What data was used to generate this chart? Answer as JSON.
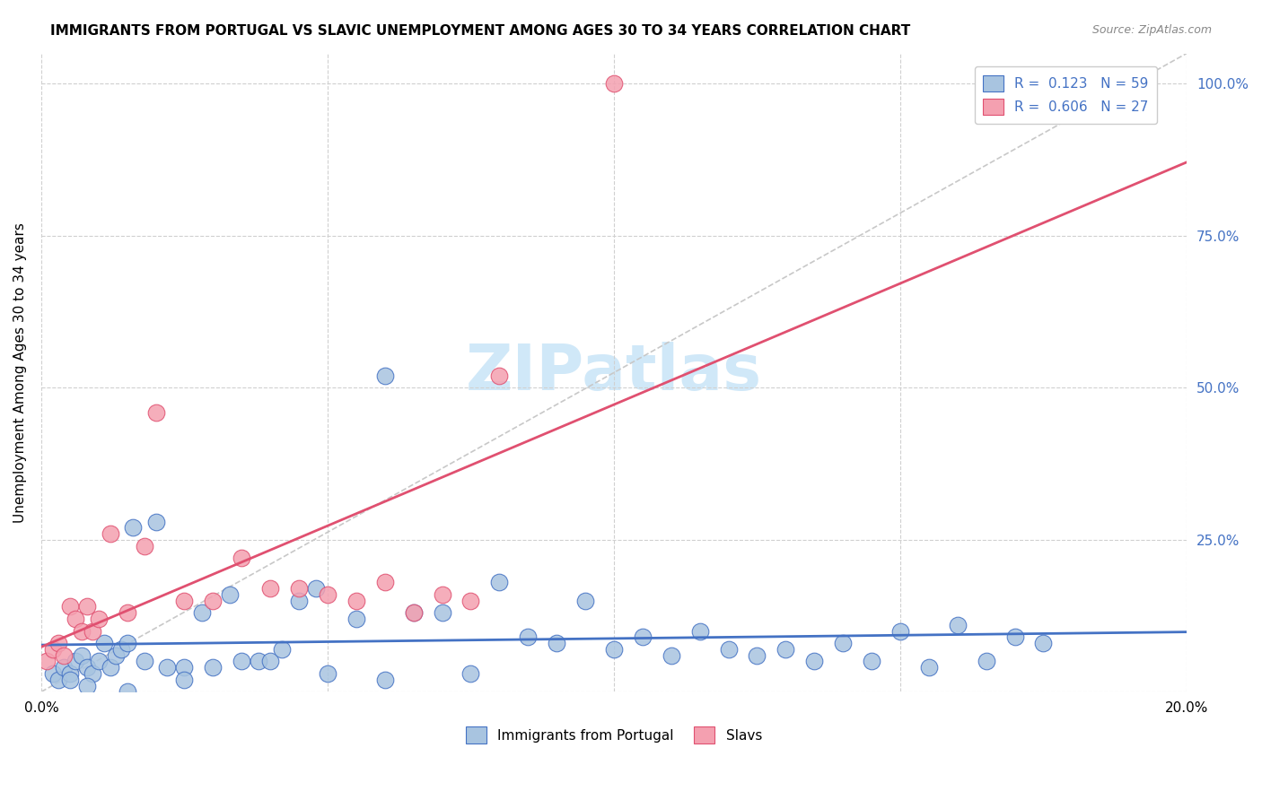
{
  "title": "IMMIGRANTS FROM PORTUGAL VS SLAVIC UNEMPLOYMENT AMONG AGES 30 TO 34 YEARS CORRELATION CHART",
  "source": "Source: ZipAtlas.com",
  "ylabel": "Unemployment Among Ages 30 to 34 years",
  "xlim": [
    0.0,
    0.2
  ],
  "ylim": [
    0.0,
    1.05
  ],
  "x_ticks": [
    0.0,
    0.05,
    0.1,
    0.15,
    0.2
  ],
  "x_tick_labels": [
    "0.0%",
    "",
    "",
    "",
    "20.0%"
  ],
  "y_ticks": [
    0.0,
    0.25,
    0.5,
    0.75,
    1.0
  ],
  "y_tick_labels_right": [
    "",
    "25.0%",
    "50.0%",
    "75.0%",
    "100.0%"
  ],
  "legend1_label": "Immigrants from Portugal",
  "legend2_label": "Slavs",
  "R1": "0.123",
  "N1": "59",
  "R2": "0.606",
  "N2": "27",
  "color_blue": "#a8c4e0",
  "color_pink": "#f4a0b0",
  "line_blue": "#4472C4",
  "line_pink": "#E05070",
  "watermark_color": "#d0e8f8",
  "blue_scatter_x": [
    0.002,
    0.003,
    0.004,
    0.005,
    0.006,
    0.007,
    0.008,
    0.009,
    0.01,
    0.011,
    0.012,
    0.013,
    0.014,
    0.015,
    0.016,
    0.018,
    0.02,
    0.022,
    0.025,
    0.028,
    0.03,
    0.033,
    0.035,
    0.038,
    0.04,
    0.042,
    0.045,
    0.048,
    0.05,
    0.055,
    0.06,
    0.065,
    0.07,
    0.075,
    0.08,
    0.085,
    0.09,
    0.095,
    0.1,
    0.105,
    0.11,
    0.115,
    0.12,
    0.125,
    0.13,
    0.135,
    0.14,
    0.145,
    0.15,
    0.155,
    0.16,
    0.165,
    0.17,
    0.175,
    0.005,
    0.008,
    0.015,
    0.025,
    0.06
  ],
  "blue_scatter_y": [
    0.03,
    0.02,
    0.04,
    0.03,
    0.05,
    0.06,
    0.04,
    0.03,
    0.05,
    0.08,
    0.04,
    0.06,
    0.07,
    0.08,
    0.27,
    0.05,
    0.28,
    0.04,
    0.04,
    0.13,
    0.04,
    0.16,
    0.05,
    0.05,
    0.05,
    0.07,
    0.15,
    0.17,
    0.03,
    0.12,
    0.02,
    0.13,
    0.13,
    0.03,
    0.18,
    0.09,
    0.08,
    0.15,
    0.07,
    0.09,
    0.06,
    0.1,
    0.07,
    0.06,
    0.07,
    0.05,
    0.08,
    0.05,
    0.1,
    0.04,
    0.11,
    0.05,
    0.09,
    0.08,
    0.02,
    0.01,
    0.0,
    0.02,
    0.52
  ],
  "pink_scatter_x": [
    0.001,
    0.002,
    0.003,
    0.004,
    0.005,
    0.006,
    0.007,
    0.008,
    0.009,
    0.01,
    0.012,
    0.015,
    0.018,
    0.02,
    0.025,
    0.03,
    0.035,
    0.04,
    0.045,
    0.05,
    0.055,
    0.06,
    0.065,
    0.07,
    0.075,
    0.08,
    0.1
  ],
  "pink_scatter_y": [
    0.05,
    0.07,
    0.08,
    0.06,
    0.14,
    0.12,
    0.1,
    0.14,
    0.1,
    0.12,
    0.26,
    0.13,
    0.24,
    0.46,
    0.15,
    0.15,
    0.22,
    0.17,
    0.17,
    0.16,
    0.15,
    0.18,
    0.13,
    0.16,
    0.15,
    0.52,
    1.0
  ],
  "diagonal_color": "#c8c8c8",
  "diagonal_style": "--"
}
